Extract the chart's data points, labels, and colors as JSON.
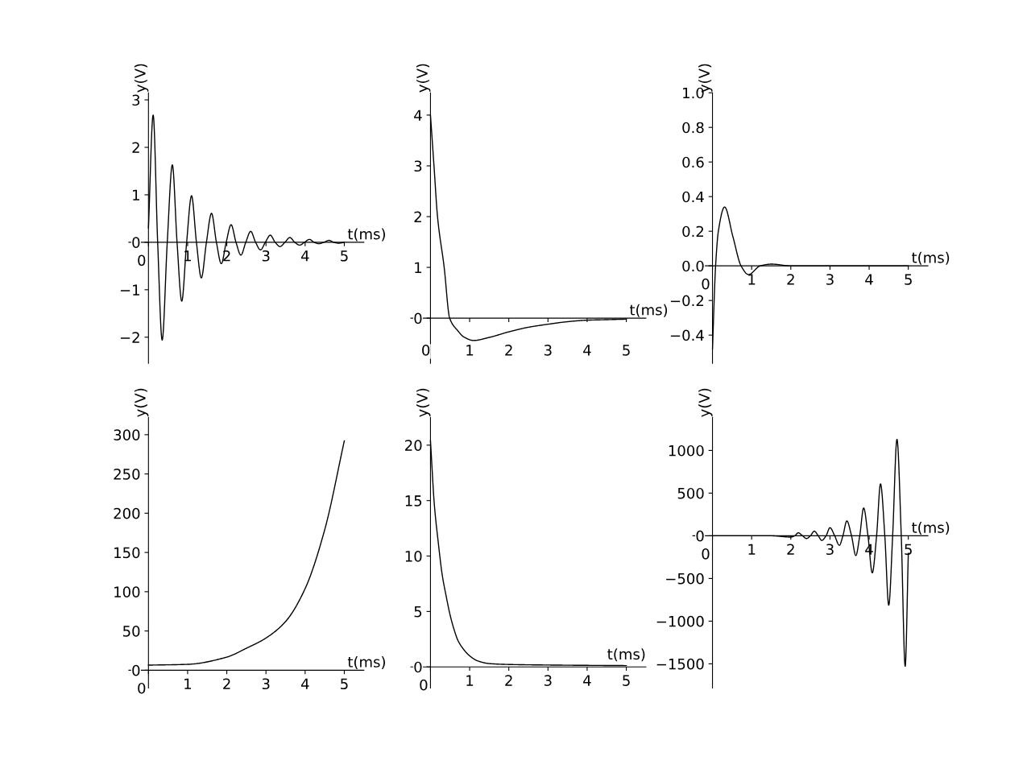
{
  "chart_data": [
    {
      "type": "line",
      "xlabel": "t(ms)",
      "ylabel": "y(V)",
      "xlim": [
        -0.5,
        5.5
      ],
      "ylim": [
        -2.55,
        3.15
      ],
      "xticks": [
        0,
        1,
        2,
        3,
        4,
        5
      ],
      "yticks": [
        {
          "value": -2,
          "label": "−2"
        },
        {
          "value": -1,
          "label": "−1"
        },
        0,
        1,
        2,
        3
      ],
      "grid": false,
      "series": [
        {
          "color": "#000000",
          "x": [
            0,
            0.12,
            0.235,
            0.35,
            0.48,
            0.61,
            0.73,
            0.85,
            0.975,
            1.1,
            1.225,
            1.35,
            1.48,
            1.61,
            1.735,
            1.86,
            1.985,
            2.11,
            2.235,
            2.36,
            2.485,
            2.61,
            2.735,
            2.86,
            2.985,
            3.11,
            3.235,
            3.36,
            3.485,
            3.61,
            3.735,
            3.86,
            3.985,
            4.11,
            4.23,
            4.35,
            4.48,
            4.61,
            4.73,
            4.86,
            5.0
          ],
          "values": [
            0.3,
            2.68,
            0,
            -2.06,
            0,
            1.63,
            0,
            -1.24,
            0,
            0.98,
            0,
            -0.75,
            0,
            0.61,
            0,
            -0.45,
            0,
            0.37,
            0,
            -0.27,
            0,
            0.23,
            0,
            -0.16,
            0,
            0.15,
            0,
            -0.09,
            0,
            0.1,
            0,
            -0.06,
            0,
            0.06,
            0,
            -0.03,
            0,
            0.04,
            0,
            -0.02,
            0
          ]
        }
      ]
    },
    {
      "type": "line",
      "xlabel": "t(ms)",
      "ylabel": "y(V)",
      "xlim": [
        -0.5,
        5.5
      ],
      "ylim": [
        -0.89,
        4.44
      ],
      "xticks": [
        0,
        1,
        2,
        3,
        4,
        5
      ],
      "yticks": [
        0,
        1,
        2,
        3,
        4
      ],
      "grid": false,
      "series": [
        {
          "color": "#000000",
          "x": [
            0,
            0.09,
            0.18,
            0.35,
            0.49,
            0.7,
            0.85,
            1.1,
            1.5,
            2,
            2.5,
            3,
            3.5,
            4,
            4.5,
            5
          ],
          "values": [
            4.0,
            3.0,
            2.0,
            1.0,
            0,
            -0.25,
            -0.37,
            -0.44,
            -0.38,
            -0.27,
            -0.18,
            -0.12,
            -0.07,
            -0.04,
            -0.03,
            -0.02
          ]
        }
      ]
    },
    {
      "type": "line",
      "xlabel": "t(ms)",
      "ylabel": "y(V)",
      "xlim": [
        -0.5,
        5.5
      ],
      "ylim": [
        -0.563,
        1.0
      ],
      "xticks": [
        0,
        1,
        2,
        3,
        4,
        5
      ],
      "yticks": [
        {
          "value": -0.4,
          "label": "−0.4"
        },
        {
          "value": -0.2,
          "label": "−0.2"
        },
        {
          "value": 0,
          "label": "0.0"
        },
        0.2,
        0.4,
        0.6,
        0.8,
        {
          "value": 1.0,
          "label": "1.0"
        }
      ],
      "grid": false,
      "series": [
        {
          "color": "#000000",
          "x": [
            0,
            0.08,
            0.15,
            0.31,
            0.52,
            0.73,
            0.92,
            1.22,
            1.51,
            2.0,
            3.0,
            4.0,
            5.0
          ],
          "values": [
            -0.48,
            0,
            0.2,
            0.34,
            0.17,
            0,
            -0.05,
            0,
            0.01,
            0,
            0,
            0,
            0
          ]
        }
      ]
    },
    {
      "type": "line",
      "xlabel": "t(ms)",
      "ylabel": "y(V)",
      "xlim": [
        -0.5,
        5.5
      ],
      "ylim": [
        -22.6,
        322
      ],
      "xticks": [
        0,
        1,
        2,
        3,
        4,
        5
      ],
      "yticks": [
        0,
        50,
        100,
        150,
        200,
        250,
        300
      ],
      "grid": false,
      "series": [
        {
          "color": "#000000",
          "x": [
            0,
            1,
            2,
            2.5,
            3,
            3.5,
            4,
            4.5,
            5
          ],
          "values": [
            6.5,
            7.5,
            16.7,
            28,
            41,
            62,
            104,
            179,
            292
          ]
        }
      ]
    },
    {
      "type": "line",
      "xlabel": "t(ms)",
      "ylabel": "y(V)",
      "xlim": [
        -0.5,
        5.5
      ],
      "ylim": [
        -1.9,
        22.5
      ],
      "xticks": [
        0,
        1,
        2,
        3,
        4,
        5
      ],
      "yticks": [
        0,
        5,
        10,
        15,
        20
      ],
      "grid": false,
      "series": [
        {
          "color": "#000000",
          "x": [
            0,
            0.1,
            0.2,
            0.3,
            0.4,
            0.5,
            0.6,
            0.7,
            0.8,
            1.0,
            1.2,
            1.5,
            2,
            3,
            4,
            5
          ],
          "values": [
            20.4,
            14.6,
            11.2,
            8.3,
            6.4,
            4.7,
            3.4,
            2.4,
            1.8,
            1.0,
            0.55,
            0.3,
            0.22,
            0.17,
            0.14,
            0.12
          ]
        }
      ]
    },
    {
      "type": "line",
      "xlabel": "t(ms)",
      "ylabel": "y(V)",
      "xlim": [
        -0.5,
        5.5
      ],
      "ylim": [
        -1783,
        1387
      ],
      "xticks": [
        0,
        1,
        2,
        3,
        4,
        5
      ],
      "yticks": [
        {
          "value": -1500,
          "label": "−1500"
        },
        {
          "value": -1000,
          "label": "−1000"
        },
        {
          "value": -500,
          "label": "−500"
        },
        0,
        500,
        1000
      ],
      "grid": false,
      "series": [
        {
          "color": "#000000",
          "x": [
            0,
            1.0,
            1.5,
            2.0,
            2.1,
            2.19,
            2.3,
            2.4,
            2.5,
            2.6,
            2.7,
            2.79,
            2.9,
            3.0,
            3.12,
            3.24,
            3.33,
            3.43,
            3.55,
            3.66,
            3.76,
            3.86,
            3.97,
            4.08,
            4.19,
            4.29,
            4.4,
            4.5,
            4.6,
            4.71,
            4.82,
            4.92,
            5.0
          ],
          "values": [
            0,
            0,
            0,
            -15,
            0,
            35,
            0,
            -32,
            0,
            54,
            0,
            -54,
            0,
            95,
            0,
            -111,
            0,
            174,
            0,
            -231,
            0,
            326,
            0,
            -434,
            0,
            608,
            0,
            -813,
            0,
            1130,
            0,
            -1528,
            -205
          ]
        }
      ]
    }
  ]
}
